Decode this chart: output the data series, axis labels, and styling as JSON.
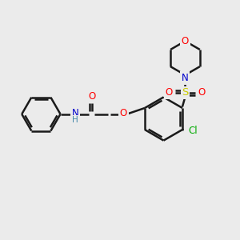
{
  "bg_color": "#ebebeb",
  "bond_color": "#1a1a1a",
  "bond_width": 1.8,
  "atom_colors": {
    "O": "#ff0000",
    "N": "#0000cc",
    "S": "#cccc00",
    "Cl": "#00aa00",
    "C": "#1a1a1a",
    "H": "#4488aa"
  },
  "font_size": 8.5,
  "fig_size": [
    3.0,
    3.0
  ],
  "dpi": 100
}
